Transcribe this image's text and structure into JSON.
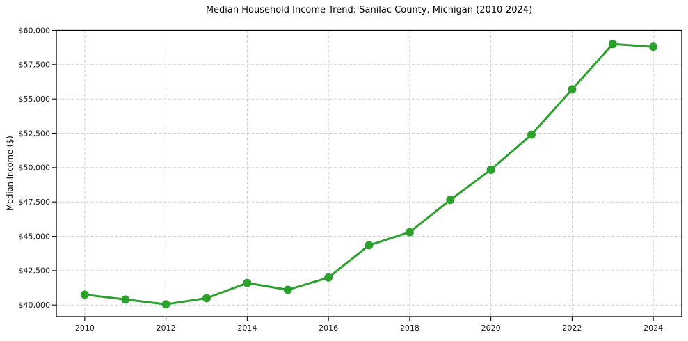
{
  "chart_data": {
    "type": "line",
    "title": "Median Household Income Trend: Sanilac County, Michigan (2010-2024)",
    "ylabel": "Median Income ($)",
    "xlabel": "",
    "x": [
      2010,
      2011,
      2012,
      2013,
      2014,
      2015,
      2016,
      2017,
      2018,
      2019,
      2020,
      2021,
      2022,
      2023,
      2024
    ],
    "series": [
      {
        "name": "Median Household Income",
        "values": [
          40750,
          40400,
          40050,
          40500,
          41600,
          41100,
          42000,
          44350,
          45300,
          47650,
          49850,
          52400,
          55700,
          59000,
          58800
        ]
      }
    ],
    "x_tick_labels": [
      "2010",
      "2012",
      "2014",
      "2016",
      "2018",
      "2020",
      "2022",
      "2024"
    ],
    "x_tick_values": [
      2010,
      2012,
      2014,
      2016,
      2018,
      2020,
      2022,
      2024
    ],
    "y_tick_labels": [
      "$40,000",
      "$42,500",
      "$45,000",
      "$47,500",
      "$50,000",
      "$52,500",
      "$55,000",
      "$57,500",
      "$60,000"
    ],
    "y_tick_values": [
      40000,
      42500,
      45000,
      47500,
      50000,
      52500,
      55000,
      57500,
      60000
    ],
    "xlim": [
      2009.3,
      2024.7
    ],
    "ylim": [
      39150,
      60000
    ],
    "grid": true,
    "legend": "none",
    "line_color": "#2ca02c",
    "marker_color": "#2ca02c",
    "grid_color": "#cccccc",
    "axis_color": "#000000",
    "tick_text_color": "#1a1a1a"
  }
}
